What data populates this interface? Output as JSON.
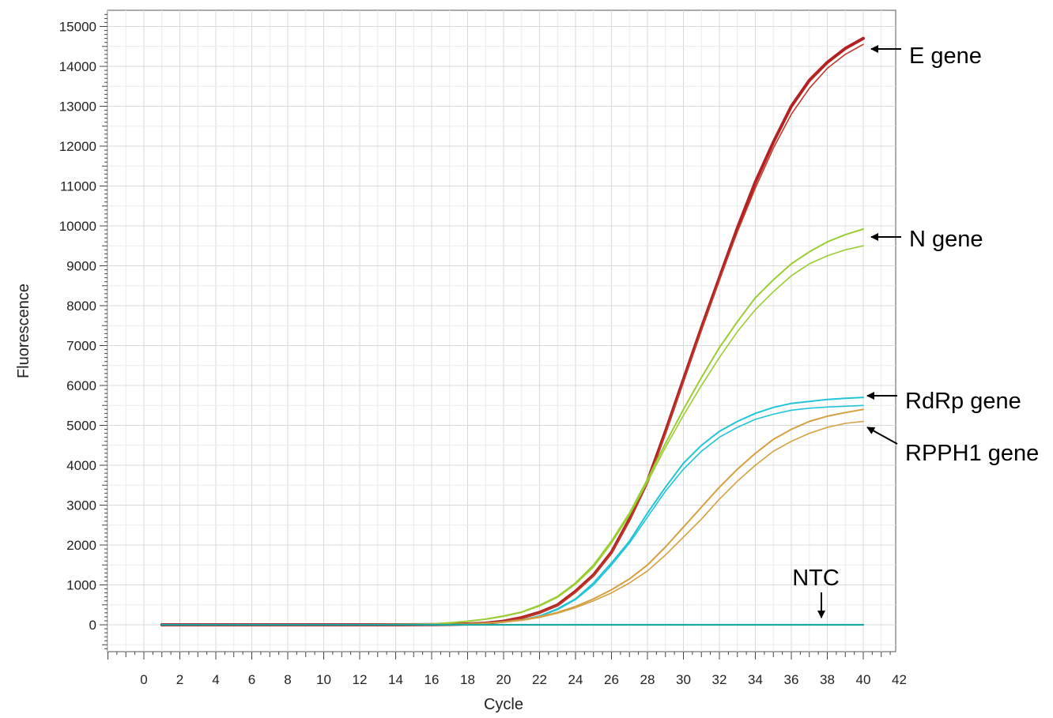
{
  "chart_data": {
    "type": "line",
    "title": "",
    "xlabel": "Cycle",
    "ylabel": "Fluorescence",
    "xlim": [
      -2,
      42
    ],
    "ylim": [
      -800,
      15400
    ],
    "grid": true,
    "x_ticks": [
      0,
      2,
      4,
      6,
      8,
      10,
      12,
      14,
      16,
      18,
      20,
      22,
      24,
      26,
      28,
      30,
      32,
      34,
      36,
      38,
      40,
      42
    ],
    "y_ticks": [
      0,
      1000,
      2000,
      3000,
      4000,
      5000,
      6000,
      7000,
      8000,
      9000,
      10000,
      11000,
      12000,
      13000,
      14000,
      15000
    ],
    "x": [
      1,
      2,
      4,
      6,
      8,
      10,
      12,
      14,
      16,
      17,
      18,
      19,
      20,
      21,
      22,
      23,
      24,
      25,
      26,
      27,
      28,
      29,
      30,
      31,
      32,
      33,
      34,
      35,
      36,
      37,
      38,
      39,
      40
    ],
    "series": [
      {
        "color": "#b22222",
        "width": 4,
        "values": [
          0,
          0,
          0,
          0,
          0,
          0,
          0,
          0,
          5,
          10,
          20,
          40,
          90,
          180,
          310,
          500,
          840,
          1250,
          1820,
          2650,
          3600,
          4850,
          6150,
          7450,
          8700,
          9950,
          11100,
          12100,
          13000,
          13650,
          14100,
          14450,
          14700
        ]
      },
      {
        "color": "#c0392b",
        "width": 1.6,
        "values": [
          0,
          0,
          0,
          0,
          0,
          0,
          0,
          0,
          5,
          10,
          20,
          40,
          85,
          170,
          300,
          490,
          820,
          1230,
          1800,
          2620,
          3570,
          4800,
          6100,
          7400,
          8650,
          9850,
          10950,
          11950,
          12800,
          13450,
          13950,
          14300,
          14550
        ]
      },
      {
        "color": "#9acd32",
        "width": 2,
        "values": [
          0,
          0,
          0,
          0,
          0,
          0,
          0,
          5,
          20,
          50,
          90,
          140,
          220,
          320,
          490,
          710,
          1050,
          1500,
          2100,
          2800,
          3650,
          4550,
          5400,
          6200,
          6950,
          7600,
          8200,
          8650,
          9050,
          9350,
          9600,
          9780,
          9920
        ]
      },
      {
        "color": "#9acd32",
        "width": 1.6,
        "values": [
          0,
          0,
          0,
          0,
          0,
          0,
          0,
          5,
          20,
          50,
          90,
          140,
          210,
          310,
          470,
          690,
          1020,
          1450,
          2050,
          2750,
          3580,
          4450,
          5250,
          6000,
          6700,
          7350,
          7900,
          8350,
          8750,
          9050,
          9250,
          9400,
          9500
        ]
      },
      {
        "color": "#22c4d8",
        "width": 2,
        "values": [
          0,
          0,
          0,
          0,
          0,
          0,
          0,
          0,
          5,
          10,
          20,
          40,
          70,
          120,
          220,
          400,
          650,
          1050,
          1550,
          2100,
          2800,
          3450,
          4050,
          4500,
          4850,
          5100,
          5300,
          5450,
          5550,
          5600,
          5650,
          5680,
          5700
        ]
      },
      {
        "color": "#22c4d8",
        "width": 1.6,
        "values": [
          0,
          0,
          0,
          0,
          0,
          0,
          0,
          0,
          5,
          10,
          20,
          40,
          70,
          120,
          210,
          380,
          630,
          1000,
          1500,
          2050,
          2700,
          3350,
          3900,
          4350,
          4700,
          4950,
          5150,
          5280,
          5380,
          5430,
          5460,
          5480,
          5500
        ]
      },
      {
        "color": "#d4a040",
        "width": 2,
        "values": [
          0,
          0,
          0,
          0,
          0,
          0,
          0,
          0,
          5,
          10,
          20,
          40,
          70,
          120,
          200,
          310,
          460,
          650,
          880,
          1150,
          1500,
          1950,
          2450,
          2950,
          3450,
          3900,
          4300,
          4650,
          4900,
          5100,
          5230,
          5320,
          5400
        ]
      },
      {
        "color": "#d4a040",
        "width": 1.6,
        "values": [
          0,
          0,
          0,
          0,
          0,
          0,
          0,
          0,
          5,
          10,
          20,
          40,
          65,
          110,
          185,
          290,
          430,
          600,
          800,
          1050,
          1350,
          1750,
          2200,
          2650,
          3150,
          3600,
          4000,
          4350,
          4600,
          4800,
          4950,
          5050,
          5100
        ]
      },
      {
        "color": "#1aa8a0",
        "width": 2.2,
        "values": [
          0,
          0,
          0,
          0,
          0,
          0,
          0,
          0,
          0,
          0,
          0,
          0,
          0,
          0,
          0,
          0,
          0,
          0,
          0,
          0,
          0,
          0,
          0,
          0,
          0,
          0,
          0,
          0,
          0,
          0,
          0,
          0,
          0
        ]
      }
    ],
    "annotations": [
      {
        "text": "E gene",
        "points_to": [
          40,
          14500
        ]
      },
      {
        "text": "N gene",
        "points_to": [
          40,
          9900
        ]
      },
      {
        "text": "RdRp gene",
        "points_to": [
          40,
          5700
        ]
      },
      {
        "text": "RPPH1 gene",
        "points_to": [
          40,
          5000
        ]
      },
      {
        "text": "NTC",
        "points_to": [
          37.7,
          150
        ]
      }
    ]
  }
}
